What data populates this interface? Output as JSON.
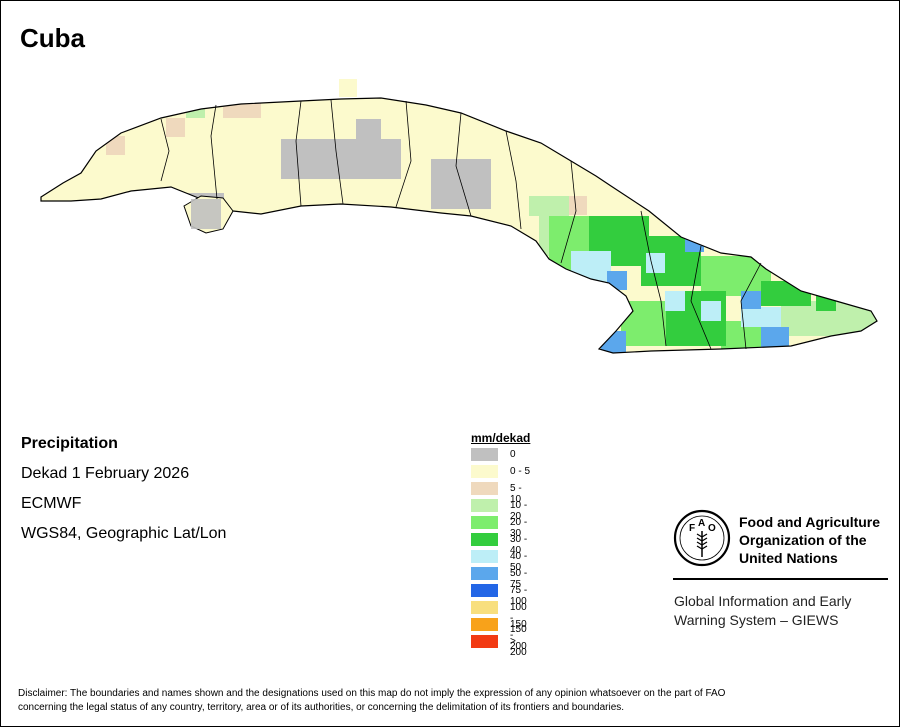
{
  "map": {
    "title": "Cuba",
    "variable": "Precipitation",
    "period": "Dekad 1 February 2026",
    "source": "ECMWF",
    "projection": "WGS84, Geographic Lat/Lon"
  },
  "legend": {
    "title": "mm/dekad",
    "classes": [
      {
        "label": "0",
        "color": "#c0c0c0"
      },
      {
        "label": "0 - 5",
        "color": "#fcfacd"
      },
      {
        "label": "5 - 10",
        "color": "#efd9bd"
      },
      {
        "label": "10 - 20",
        "color": "#bff0ac"
      },
      {
        "label": "20 - 30",
        "color": "#7ded6d"
      },
      {
        "label": "30 - 40",
        "color": "#33cd3e"
      },
      {
        "label": "40 - 50",
        "color": "#bdeef7"
      },
      {
        "label": "50 - 75",
        "color": "#5ba7ec"
      },
      {
        "label": "75 - 100",
        "color": "#2366e6"
      },
      {
        "label": "100 - 150",
        "color": "#f8df7e"
      },
      {
        "label": "150 - 200",
        "color": "#f8a21a"
      },
      {
        "label": "> 200",
        "color": "#f23a13"
      }
    ]
  },
  "organization": {
    "line1": "Food and Agriculture",
    "line2": "Organization of the",
    "line3": "United Nations",
    "logo_icon": "fao-logo-icon",
    "program_line1": "Global Information and Early",
    "program_line2": "Warning System – GIEWS"
  },
  "disclaimer": {
    "line1": "Disclaimer: The boundaries and names shown and the designations used on this map do not imply the expression of any opinion whatsoever on the part of FAO",
    "line2": "concerning the legal status of any country, territory, area or of its authorities, or concerning the delimitation of its frontiers and boundaries."
  }
}
